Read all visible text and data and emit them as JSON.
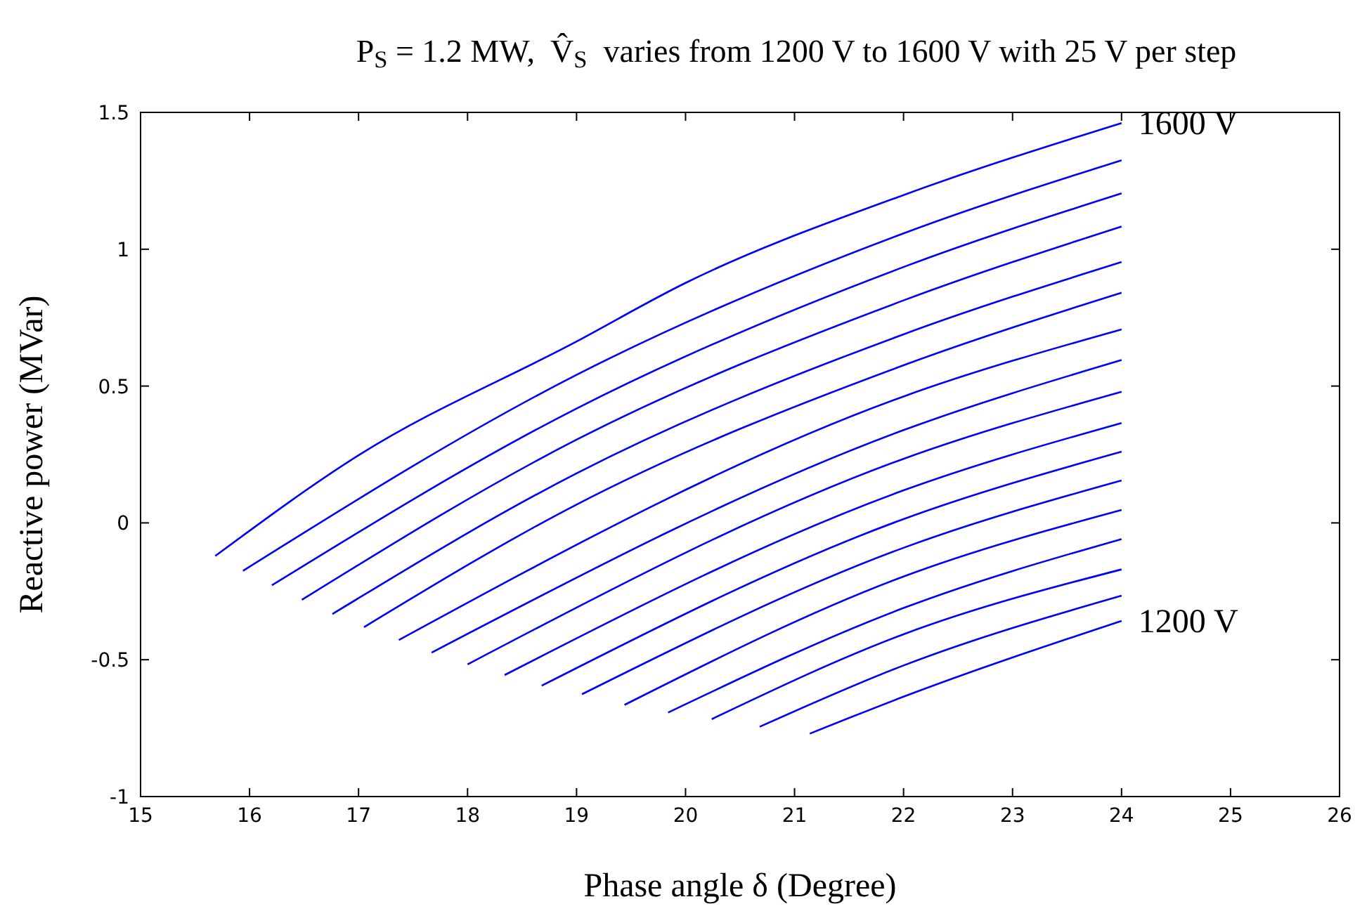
{
  "chart_data": {
    "type": "line",
    "title": "P$_{S}$ = 1.2 MW,  V̂$_{S}$  varies from 1200 V to 1600 V with 25 V per step",
    "xlabel": "Phase angle δ (Degree)",
    "ylabel": "Reactive power (MVar)",
    "xlim": [
      15,
      26
    ],
    "xticks": [
      15,
      16,
      17,
      18,
      19,
      20,
      21,
      22,
      23,
      24,
      25,
      26
    ],
    "ylim": [
      -1,
      1.5
    ],
    "yticks": [
      -1,
      -0.5,
      0,
      0.5,
      1,
      1.5
    ],
    "grid": false,
    "marker": "none",
    "line_style": "solid",
    "annotations": [
      {
        "text": "1600 V",
        "x": 24,
        "y": 1.461
      },
      {
        "text": "1200 V",
        "x": 24,
        "y": -0.358
      }
    ],
    "series": [
      {
        "color": "#0000ff",
        "x": [
          15.685,
          17,
          19,
          20,
          22,
          24
        ],
        "values": [
          -0.121,
          0.247,
          0.663,
          0.877,
          1.198,
          1.461
        ]
      },
      {
        "color": "#0000ff",
        "x": [
          15.94,
          19,
          22,
          24
        ],
        "values": [
          -0.175,
          0.541,
          1.058,
          1.325
        ]
      },
      {
        "color": "#0000ff",
        "x": [
          16.205,
          19,
          22,
          24
        ],
        "values": [
          -0.228,
          0.418,
          0.935,
          1.204
        ]
      },
      {
        "color": "#0000ff",
        "x": [
          16.48,
          19,
          22,
          24
        ],
        "values": [
          -0.281,
          0.304,
          0.813,
          1.083
        ]
      },
      {
        "color": "#0000ff",
        "x": [
          16.76,
          19,
          22,
          24
        ],
        "values": [
          -0.333,
          0.181,
          0.689,
          0.953
        ]
      },
      {
        "color": "#0000ff",
        "x": [
          17.05,
          19,
          22,
          24
        ],
        "values": [
          -0.381,
          0.067,
          0.576,
          0.841
        ]
      },
      {
        "color": "#0000ff",
        "x": [
          17.37,
          22,
          24
        ],
        "values": [
          -0.428,
          0.462,
          0.707
        ]
      },
      {
        "color": "#0000ff",
        "x": [
          17.67,
          22,
          24
        ],
        "values": [
          -0.474,
          0.339,
          0.595
        ]
      },
      {
        "color": "#0000ff",
        "x": [
          18.0,
          22,
          24
        ],
        "values": [
          -0.517,
          0.234,
          0.479
        ]
      },
      {
        "color": "#0000ff",
        "x": [
          18.34,
          22,
          24
        ],
        "values": [
          -0.556,
          0.119,
          0.365
        ]
      },
      {
        "color": "#0000ff",
        "x": [
          18.68,
          22,
          24
        ],
        "values": [
          -0.595,
          0.014,
          0.26
        ]
      },
      {
        "color": "#0000ff",
        "x": [
          19.05,
          22,
          24
        ],
        "values": [
          -0.626,
          -0.091,
          0.155
        ]
      },
      {
        "color": "#0000ff",
        "x": [
          19.44,
          22,
          24
        ],
        "values": [
          -0.665,
          -0.196,
          0.047
        ]
      },
      {
        "color": "#0000ff",
        "x": [
          19.84,
          22,
          24
        ],
        "values": [
          -0.693,
          -0.311,
          -0.059
        ]
      },
      {
        "color": "#0000ff",
        "x": [
          20.24,
          22,
          24
        ],
        "values": [
          -0.717,
          -0.407,
          -0.17
        ]
      },
      {
        "color": "#0000ff",
        "x": [
          20.68,
          22,
          24
        ],
        "values": [
          -0.745,
          -0.521,
          -0.266
        ]
      },
      {
        "color": "#0000ff",
        "x": [
          21.14,
          22,
          24
        ],
        "values": [
          -0.77,
          -0.635,
          -0.358
        ]
      }
    ]
  }
}
